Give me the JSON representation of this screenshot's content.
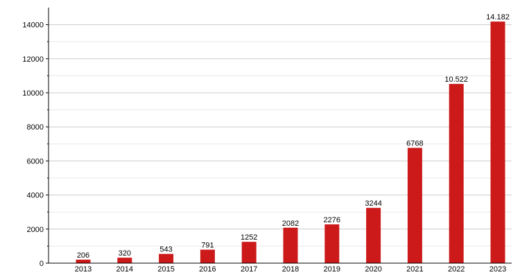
{
  "chart_data": {
    "type": "bar",
    "title": "",
    "xlabel": "",
    "ylabel": "",
    "categories": [
      "2013",
      "2014",
      "2015",
      "2016",
      "2017",
      "2018",
      "2019",
      "2020",
      "2021",
      "2022",
      "2023"
    ],
    "values": [
      206,
      320,
      543,
      791,
      1252,
      2082,
      2276,
      3244,
      6768,
      10522,
      14182
    ],
    "data_labels": [
      "206",
      "320",
      "543",
      "791",
      "1252",
      "2082",
      "2276",
      "3244",
      "6768",
      "10.522",
      "14.182"
    ],
    "ylim": [
      0,
      15000
    ],
    "y_ticks": [
      0,
      2000,
      4000,
      6000,
      8000,
      10000,
      12000,
      14000
    ],
    "y_tick_labels": [
      "0",
      "2000",
      "4000",
      "6000",
      "8000",
      "10000",
      "12000",
      "14000"
    ],
    "grid": true,
    "legend": "none",
    "bar_color": "#cc1a1a",
    "grid_color": "#cccccc"
  }
}
